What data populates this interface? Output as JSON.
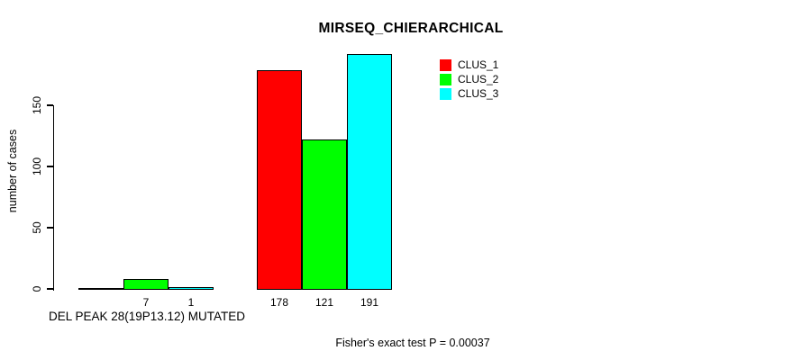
{
  "chart_data": {
    "type": "bar",
    "title": "MIRSEQ_CHIERARCHICAL",
    "ylabel": "number of cases",
    "xlabel": "DEL PEAK 28(19P13.12) MUTATED",
    "annotation": "Fisher's exact test P = 0.00037",
    "yticks": [
      0,
      50,
      100,
      150
    ],
    "ylim": [
      0,
      195
    ],
    "grid": false,
    "legend_position": "top-right",
    "legend": [
      {
        "label": "CLUS_1",
        "color": "#ff0000"
      },
      {
        "label": "CLUS_2",
        "color": "#00ff00"
      },
      {
        "label": "CLUS_3",
        "color": "#00ffff"
      }
    ],
    "series_colors": [
      "#ff0000",
      "#00ff00",
      "#00ffff"
    ],
    "groups": [
      {
        "name": "mutated-group",
        "bars": [
          {
            "series": "CLUS_1",
            "value": 0,
            "label": ""
          },
          {
            "series": "CLUS_2",
            "value": 7,
            "label": "7"
          },
          {
            "series": "CLUS_3",
            "value": 1,
            "label": "1"
          }
        ]
      },
      {
        "name": "wild-type-group",
        "bars": [
          {
            "series": "CLUS_1",
            "value": 178,
            "label": "178"
          },
          {
            "series": "CLUS_2",
            "value": 121,
            "label": "121"
          },
          {
            "series": "CLUS_3",
            "value": 191,
            "label": "191"
          }
        ]
      }
    ]
  }
}
